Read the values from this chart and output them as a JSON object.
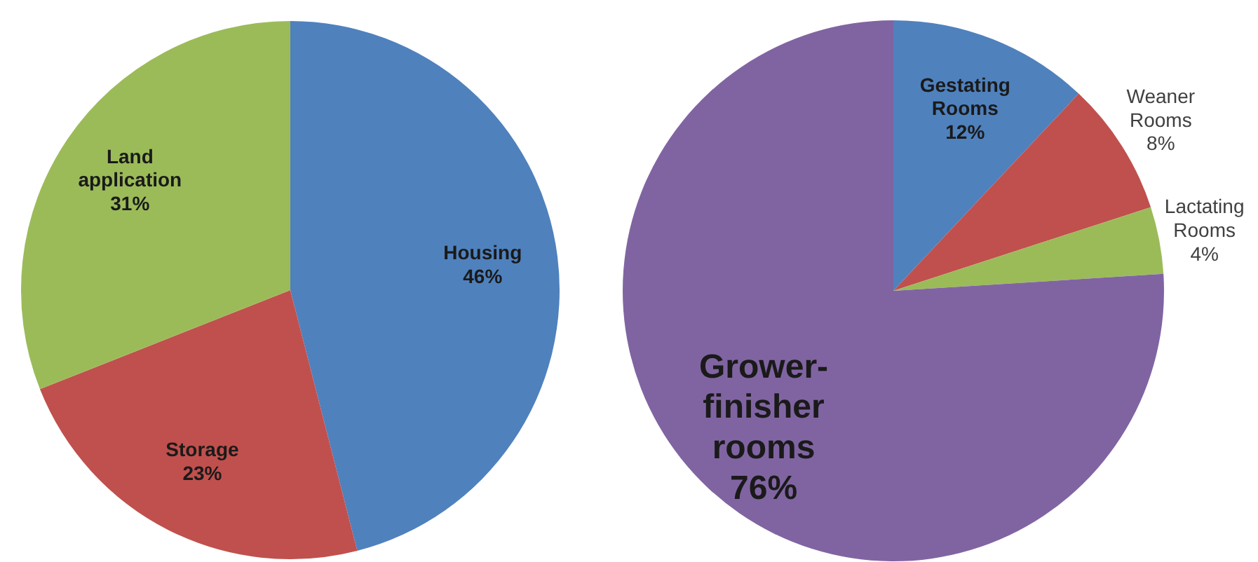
{
  "chart_data": [
    {
      "type": "pie",
      "categories": [
        "Housing",
        "Storage",
        "Land application"
      ],
      "values": [
        46,
        23,
        31
      ],
      "colors": [
        "#4f81bd",
        "#c0504d",
        "#9bbb59"
      ],
      "value_labels": [
        "46%",
        "23%",
        "31%"
      ]
    },
    {
      "type": "pie",
      "categories": [
        "Gestating Rooms",
        "Weaner Rooms",
        "Lactating Rooms",
        "Grower-finisher rooms"
      ],
      "values": [
        12,
        8,
        4,
        76
      ],
      "colors": [
        "#4f81bd",
        "#c0504d",
        "#9bbb59",
        "#8064a2"
      ],
      "value_labels": [
        "12%",
        "8%",
        "4%",
        "76%"
      ]
    }
  ]
}
